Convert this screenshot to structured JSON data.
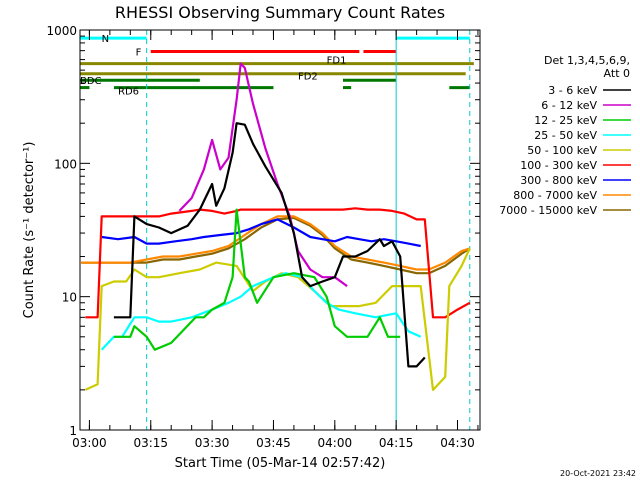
{
  "chart_data": {
    "type": "line",
    "title": "RHESSI Observing Summary Count Rates",
    "xlabel": "Start Time (05-Mar-14 02:57:42)",
    "ylabel": "Count Rate (s⁻¹ detector⁻¹)",
    "x_ticks": [
      "03:00",
      "03:15",
      "03:30",
      "03:45",
      "04:00",
      "04:15",
      "04:30"
    ],
    "y_ticks": [
      "1",
      "10",
      "100",
      "1000"
    ],
    "yscale": "log",
    "xlim": [
      "02:57:42",
      "04:35:30"
    ],
    "ylim": [
      1,
      1000
    ],
    "grid": false,
    "legend": {
      "placement": "right",
      "header": [
        "Det 1,3,4,5,6,9,",
        "Att 0"
      ]
    },
    "series": [
      {
        "name": "3 - 6 keV",
        "color": "#000000",
        "points": [
          [
            "03:06",
            7
          ],
          [
            "03:10",
            7
          ],
          [
            "03:11",
            40
          ],
          [
            "03:14",
            35
          ],
          [
            "03:17",
            33
          ],
          [
            "03:20",
            30
          ],
          [
            "03:24",
            34
          ],
          [
            "03:27",
            45
          ],
          [
            "03:30",
            70
          ],
          [
            "03:31",
            48
          ],
          [
            "03:33",
            65
          ],
          [
            "03:35",
            120
          ],
          [
            "03:36",
            200
          ],
          [
            "03:38",
            195
          ],
          [
            "03:40",
            140
          ],
          [
            "03:43",
            95
          ],
          [
            "03:47",
            60
          ],
          [
            "03:50",
            30
          ],
          [
            "03:52",
            14
          ],
          [
            "03:54",
            12
          ],
          [
            "03:57",
            13
          ],
          [
            "04:00",
            14
          ],
          [
            "04:02",
            20
          ],
          [
            "04:05",
            20
          ],
          [
            "04:08",
            22
          ],
          [
            "04:11",
            27
          ],
          [
            "04:12",
            24
          ],
          [
            "04:14",
            26
          ],
          [
            "04:16",
            20
          ],
          [
            "04:18",
            3
          ],
          [
            "04:20",
            3
          ],
          [
            "04:22",
            3.5
          ]
        ]
      },
      {
        "name": "6 - 12 keV",
        "color": "#cc00cc",
        "points": [
          [
            "03:22",
            44
          ],
          [
            "03:25",
            55
          ],
          [
            "03:28",
            90
          ],
          [
            "03:30",
            150
          ],
          [
            "03:32",
            90
          ],
          [
            "03:34",
            110
          ],
          [
            "03:36",
            300
          ],
          [
            "03:37",
            560
          ],
          [
            "03:38",
            520
          ],
          [
            "03:40",
            280
          ],
          [
            "03:43",
            130
          ],
          [
            "03:46",
            70
          ],
          [
            "03:49",
            40
          ],
          [
            "03:51",
            22
          ],
          [
            "03:54",
            16
          ],
          [
            "03:57",
            14
          ],
          [
            "04:00",
            14
          ],
          [
            "04:03",
            12
          ]
        ]
      },
      {
        "name": "12 - 25 keV",
        "color": "#00cc00",
        "points": [
          [
            "03:06",
            5
          ],
          [
            "03:10",
            5
          ],
          [
            "03:11",
            6
          ],
          [
            "03:14",
            5
          ],
          [
            "03:16",
            4
          ],
          [
            "03:20",
            4.5
          ],
          [
            "03:26",
            7
          ],
          [
            "03:28",
            7
          ],
          [
            "03:30",
            8
          ],
          [
            "03:33",
            9
          ],
          [
            "03:35",
            14
          ],
          [
            "03:36",
            45
          ],
          [
            "03:38",
            14
          ],
          [
            "03:39",
            13
          ],
          [
            "03:41",
            9
          ],
          [
            "03:45",
            14
          ],
          [
            "03:50",
            15
          ],
          [
            "03:55",
            14
          ],
          [
            "03:58",
            10
          ],
          [
            "04:00",
            6
          ],
          [
            "04:03",
            5
          ],
          [
            "04:08",
            5
          ],
          [
            "04:11",
            7
          ],
          [
            "04:13",
            5
          ],
          [
            "04:16",
            5
          ]
        ]
      },
      {
        "name": "25 - 50 keV",
        "color": "#00ffff",
        "points": [
          [
            "03:03",
            4
          ],
          [
            "03:06",
            5
          ],
          [
            "03:08",
            5
          ],
          [
            "03:11",
            7
          ],
          [
            "03:14",
            7
          ],
          [
            "03:17",
            6.5
          ],
          [
            "03:20",
            6.5
          ],
          [
            "03:25",
            7
          ],
          [
            "03:30",
            8
          ],
          [
            "03:34",
            9
          ],
          [
            "03:37",
            10
          ],
          [
            "03:40",
            12
          ],
          [
            "03:45",
            14
          ],
          [
            "03:48",
            15
          ],
          [
            "03:52",
            14
          ],
          [
            "03:55",
            11
          ],
          [
            "03:58",
            9
          ],
          [
            "04:01",
            8
          ],
          [
            "04:05",
            7.5
          ],
          [
            "04:10",
            7
          ],
          [
            "04:15",
            7.5
          ],
          [
            "04:18",
            5.5
          ],
          [
            "04:21",
            5
          ]
        ]
      },
      {
        "name": "50 - 100 keV",
        "color": "#cccc00",
        "points": [
          [
            "02:59",
            2
          ],
          [
            "03:02",
            2.2
          ],
          [
            "03:03",
            12
          ],
          [
            "03:06",
            13
          ],
          [
            "03:09",
            13
          ],
          [
            "03:11",
            16
          ],
          [
            "03:14",
            14
          ],
          [
            "03:17",
            14
          ],
          [
            "03:22",
            15
          ],
          [
            "03:27",
            16
          ],
          [
            "03:31",
            18
          ],
          [
            "03:36",
            17
          ],
          [
            "03:40",
            11
          ],
          [
            "03:43",
            13
          ],
          [
            "03:47",
            15
          ],
          [
            "03:51",
            14
          ],
          [
            "03:55",
            11
          ],
          [
            "03:59",
            8.5
          ],
          [
            "04:02",
            8.5
          ],
          [
            "04:06",
            8.5
          ],
          [
            "04:10",
            9
          ],
          [
            "04:14",
            12
          ],
          [
            "04:17",
            12
          ],
          [
            "04:21",
            12
          ],
          [
            "04:24",
            2
          ],
          [
            "04:27",
            2.5
          ],
          [
            "04:28",
            12
          ],
          [
            "04:31",
            17
          ],
          [
            "04:33",
            23
          ]
        ]
      },
      {
        "name": "100 - 300 keV",
        "color": "#ff0000",
        "points": [
          [
            "02:59",
            7
          ],
          [
            "03:02",
            7
          ],
          [
            "03:03",
            40
          ],
          [
            "03:07",
            40
          ],
          [
            "03:11",
            40
          ],
          [
            "03:14",
            40
          ],
          [
            "03:17",
            40
          ],
          [
            "03:20",
            42
          ],
          [
            "03:25",
            44
          ],
          [
            "03:27",
            45
          ],
          [
            "03:30",
            44
          ],
          [
            "03:33",
            42
          ],
          [
            "03:36",
            44
          ],
          [
            "03:37",
            45
          ],
          [
            "04:02",
            45
          ],
          [
            "04:05",
            46
          ],
          [
            "04:08",
            45
          ],
          [
            "04:11",
            45
          ],
          [
            "04:14",
            44
          ],
          [
            "04:17",
            42
          ],
          [
            "04:20",
            38
          ],
          [
            "04:22",
            38
          ],
          [
            "04:24",
            7
          ],
          [
            "04:27",
            7
          ],
          [
            "04:30",
            8
          ],
          [
            "04:33",
            9
          ]
        ]
      },
      {
        "name": "300 - 800 keV",
        "color": "#0000ff",
        "points": [
          [
            "03:03",
            28
          ],
          [
            "03:07",
            27
          ],
          [
            "03:11",
            28
          ],
          [
            "03:14",
            25
          ],
          [
            "03:17",
            25
          ],
          [
            "03:21",
            26
          ],
          [
            "03:25",
            27
          ],
          [
            "03:28",
            28
          ],
          [
            "03:32",
            29
          ],
          [
            "03:36",
            30
          ],
          [
            "03:39",
            32
          ],
          [
            "03:42",
            35
          ],
          [
            "03:46",
            38
          ],
          [
            "03:50",
            33
          ],
          [
            "03:54",
            28
          ],
          [
            "03:57",
            27
          ],
          [
            "04:00",
            26
          ],
          [
            "04:03",
            28
          ],
          [
            "04:06",
            27
          ],
          [
            "04:09",
            26
          ],
          [
            "04:12",
            27
          ],
          [
            "04:15",
            26
          ],
          [
            "04:18",
            25
          ],
          [
            "04:21",
            24
          ]
        ]
      },
      {
        "name": "800 - 7000 keV",
        "color": "#ff8800",
        "points": [
          [
            "02:58",
            18
          ],
          [
            "03:02",
            18
          ],
          [
            "03:06",
            18
          ],
          [
            "03:10",
            18
          ],
          [
            "03:14",
            19
          ],
          [
            "03:18",
            20
          ],
          [
            "03:22",
            20
          ],
          [
            "03:26",
            21
          ],
          [
            "03:30",
            22
          ],
          [
            "03:34",
            24
          ],
          [
            "03:38",
            29
          ],
          [
            "03:42",
            35
          ],
          [
            "03:46",
            40
          ],
          [
            "03:50",
            40
          ],
          [
            "03:54",
            35
          ],
          [
            "03:57",
            30
          ],
          [
            "04:00",
            24
          ],
          [
            "04:04",
            20
          ],
          [
            "04:08",
            19
          ],
          [
            "04:12",
            18
          ],
          [
            "04:16",
            17
          ],
          [
            "04:20",
            16
          ],
          [
            "04:23",
            16
          ],
          [
            "04:27",
            18
          ],
          [
            "04:31",
            22
          ],
          [
            "04:33",
            23
          ]
        ]
      },
      {
        "name": "7000 - 15000 keV",
        "color": "#886600",
        "points": [
          [
            "02:58",
            18
          ],
          [
            "03:02",
            18
          ],
          [
            "03:06",
            18
          ],
          [
            "03:10",
            18
          ],
          [
            "03:14",
            18
          ],
          [
            "03:18",
            19
          ],
          [
            "03:22",
            19
          ],
          [
            "03:26",
            20
          ],
          [
            "03:30",
            21
          ],
          [
            "03:34",
            23
          ],
          [
            "03:38",
            27
          ],
          [
            "03:42",
            33
          ],
          [
            "03:46",
            38
          ],
          [
            "03:50",
            39
          ],
          [
            "03:54",
            34
          ],
          [
            "03:57",
            29
          ],
          [
            "04:00",
            23
          ],
          [
            "04:04",
            19
          ],
          [
            "04:08",
            18
          ],
          [
            "04:12",
            17
          ],
          [
            "04:16",
            16
          ],
          [
            "04:20",
            15
          ],
          [
            "04:23",
            15
          ],
          [
            "04:27",
            17
          ],
          [
            "04:31",
            21
          ],
          [
            "04:33",
            23
          ]
        ]
      }
    ],
    "state_bars": [
      {
        "label": "N",
        "color": "#00ffff",
        "y": 870,
        "segments": [
          [
            "02:57:42",
            "03:14"
          ],
          [
            "04:15",
            "04:33"
          ]
        ]
      },
      {
        "label": "F",
        "color": "#ff0000",
        "y": 690,
        "segments": [
          [
            "03:15",
            "04:06"
          ],
          [
            "04:07",
            "04:15"
          ]
        ]
      },
      {
        "label": "FD1",
        "color": "#888800",
        "y": 560,
        "segments": [
          [
            "02:57:42",
            "04:34"
          ]
        ]
      },
      {
        "label": "FD2",
        "color": "#888800",
        "y": 470,
        "segments": [
          [
            "02:57:42",
            "04:32"
          ]
        ]
      },
      {
        "label": "BDC",
        "color": "#007700",
        "y": 420,
        "segments": [
          [
            "02:57:42",
            "03:27"
          ],
          [
            "04:02",
            "04:15"
          ]
        ]
      },
      {
        "label": "RD6",
        "color": "#007700",
        "y": 370,
        "segments": [
          [
            "02:57:42",
            "03:00"
          ],
          [
            "03:06",
            "03:45"
          ],
          [
            "04:02",
            "04:04"
          ],
          [
            "04:28",
            "04:33"
          ]
        ]
      }
    ],
    "vertical_markers": [
      {
        "x": "03:14",
        "color": "#00cccc",
        "style": "dashed"
      },
      {
        "x": "04:15",
        "color": "#00cccc",
        "style": "solid"
      },
      {
        "x": "04:33",
        "color": "#00cccc",
        "style": "dashed"
      }
    ]
  },
  "footer": {
    "date_stamp": "20-Oct-2021 23:42"
  }
}
